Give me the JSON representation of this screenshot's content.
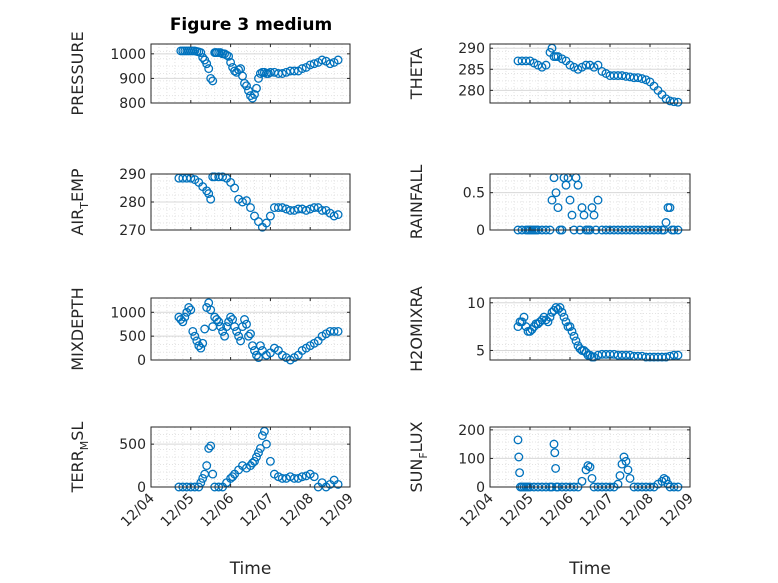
{
  "chart_data": {
    "type": "scatter",
    "figure_title": "Figure 3 medium",
    "marker_color": "#0072BD",
    "x_tick_labels": [
      "12/04",
      "12/05",
      "12/06",
      "12/07",
      "12/08",
      "12/09"
    ],
    "x_label": "Time",
    "panels": [
      {
        "name": "pressure",
        "ylabel": "PRESSURE",
        "ylim": [
          800,
          1040
        ],
        "yticks": [
          800,
          900,
          1000
        ],
        "x": [
          0.75,
          0.8,
          0.85,
          0.9,
          0.95,
          1.0,
          1.05,
          1.1,
          1.15,
          1.2,
          1.25,
          1.3,
          1.35,
          1.4,
          1.45,
          1.5,
          1.55,
          1.6,
          1.62,
          1.65,
          1.7,
          1.75,
          1.8,
          1.85,
          1.9,
          1.95,
          2.0,
          2.05,
          2.1,
          2.15,
          2.2,
          2.25,
          2.3,
          2.35,
          2.4,
          2.45,
          2.5,
          2.55,
          2.6,
          2.65,
          2.7,
          2.75,
          2.8,
          2.85,
          2.9,
          2.95,
          3.0,
          3.1,
          3.2,
          3.3,
          3.4,
          3.5,
          3.6,
          3.7,
          3.8,
          3.9,
          4.0,
          4.1,
          4.2,
          4.3,
          4.4,
          4.5,
          4.6,
          4.7
        ],
        "values": [
          1012,
          1012,
          1012,
          1012,
          1012,
          1012,
          1012,
          1012,
          1010,
          1008,
          1005,
          985,
          975,
          960,
          940,
          900,
          890,
          1005,
          1005,
          1005,
          1005,
          1005,
          1000,
          1000,
          995,
          990,
          965,
          945,
          930,
          925,
          935,
          940,
          910,
          880,
          870,
          850,
          830,
          820,
          835,
          860,
          900,
          920,
          925,
          925,
          920,
          920,
          925,
          925,
          920,
          920,
          925,
          930,
          930,
          930,
          940,
          945,
          955,
          960,
          965,
          975,
          970,
          960,
          965,
          975
        ]
      },
      {
        "name": "theta",
        "ylabel": "THETA",
        "ylim": [
          277,
          291
        ],
        "yticks": [
          280,
          285,
          290
        ],
        "x": [
          0.7,
          0.8,
          0.9,
          1.0,
          1.1,
          1.2,
          1.3,
          1.4,
          1.5,
          1.55,
          1.6,
          1.65,
          1.7,
          1.8,
          1.9,
          2.0,
          2.1,
          2.2,
          2.3,
          2.4,
          2.5,
          2.6,
          2.7,
          2.8,
          2.9,
          3.0,
          3.1,
          3.2,
          3.3,
          3.4,
          3.5,
          3.6,
          3.7,
          3.8,
          3.9,
          4.0,
          4.1,
          4.2,
          4.3,
          4.4,
          4.5,
          4.6,
          4.7
        ],
        "values": [
          287,
          287,
          287,
          287,
          286.5,
          286,
          285.5,
          286,
          289,
          290,
          288,
          288,
          288,
          287.5,
          287,
          286,
          285.5,
          285,
          285.5,
          286,
          286,
          285.5,
          286,
          284.5,
          284,
          283.5,
          283.5,
          283.5,
          283.5,
          283.3,
          283.2,
          283,
          283,
          282.8,
          282.5,
          282,
          281,
          280,
          279,
          278,
          277.5,
          277.3,
          277.2
        ]
      },
      {
        "name": "air_temp",
        "ylabel": "AIR",
        "ylabel_sub": "T",
        "ylabel_rest": "EMP",
        "ylim": [
          270,
          290
        ],
        "yticks": [
          270,
          280,
          290
        ],
        "x": [
          0.7,
          0.8,
          0.9,
          1.0,
          1.1,
          1.2,
          1.3,
          1.4,
          1.45,
          1.5,
          1.55,
          1.6,
          1.7,
          1.8,
          1.9,
          2.0,
          2.1,
          2.2,
          2.3,
          2.4,
          2.5,
          2.6,
          2.7,
          2.8,
          2.9,
          3.0,
          3.1,
          3.2,
          3.3,
          3.4,
          3.5,
          3.6,
          3.7,
          3.8,
          3.9,
          4.0,
          4.1,
          4.2,
          4.3,
          4.4,
          4.5,
          4.6,
          4.7
        ],
        "values": [
          288.5,
          288.5,
          288.5,
          288.5,
          288,
          287,
          285.5,
          284,
          283,
          281,
          289,
          289,
          289,
          289,
          288.5,
          287,
          285,
          281,
          280,
          280.5,
          278,
          275,
          273,
          271,
          272.5,
          275,
          278,
          278,
          278,
          277.5,
          277,
          277,
          277.5,
          277.5,
          277,
          277.5,
          278,
          278,
          277,
          277,
          276,
          275,
          275.5
        ]
      },
      {
        "name": "rainfall",
        "ylabel": "RAINFALL",
        "ylim": [
          0,
          0.75
        ],
        "yticks": [
          0,
          0.5
        ],
        "x": [
          0.7,
          0.8,
          0.9,
          0.95,
          1.0,
          1.05,
          1.1,
          1.15,
          1.2,
          1.3,
          1.4,
          1.5,
          1.55,
          1.6,
          1.65,
          1.7,
          1.75,
          1.8,
          1.85,
          1.9,
          1.95,
          2.0,
          2.05,
          2.1,
          2.15,
          2.2,
          2.25,
          2.3,
          2.35,
          2.4,
          2.45,
          2.5,
          2.55,
          2.6,
          2.65,
          2.7,
          2.8,
          2.9,
          3.0,
          3.1,
          3.2,
          3.3,
          3.4,
          3.5,
          3.6,
          3.7,
          3.8,
          3.9,
          4.0,
          4.1,
          4.2,
          4.3,
          4.35,
          4.4,
          4.45,
          4.5,
          4.55,
          4.6,
          4.7
        ],
        "values": [
          0,
          0,
          0,
          0,
          0,
          0,
          0,
          0,
          0,
          0,
          0,
          0,
          0.4,
          0.7,
          0.5,
          0.3,
          0,
          0,
          0.7,
          0.6,
          0.7,
          0.4,
          0.2,
          0,
          0.7,
          0.6,
          0,
          0.3,
          0.2,
          0,
          0,
          0,
          0.3,
          0.2,
          0,
          0.4,
          0,
          0,
          0,
          0,
          0,
          0,
          0,
          0,
          0,
          0,
          0,
          0,
          0,
          0,
          0,
          0,
          0,
          0.1,
          0.3,
          0.3,
          0,
          0,
          0
        ]
      },
      {
        "name": "mixdepth",
        "ylabel": "MIXDEPTH",
        "ylim": [
          0,
          1300
        ],
        "yticks": [
          0,
          500,
          1000
        ],
        "x": [
          0.7,
          0.75,
          0.8,
          0.85,
          0.9,
          0.95,
          1.0,
          1.05,
          1.1,
          1.15,
          1.2,
          1.25,
          1.3,
          1.35,
          1.4,
          1.45,
          1.5,
          1.55,
          1.6,
          1.65,
          1.7,
          1.75,
          1.8,
          1.85,
          1.9,
          1.95,
          2.0,
          2.05,
          2.1,
          2.15,
          2.2,
          2.25,
          2.3,
          2.35,
          2.4,
          2.45,
          2.5,
          2.55,
          2.6,
          2.65,
          2.7,
          2.75,
          2.8,
          2.9,
          3.0,
          3.1,
          3.2,
          3.3,
          3.4,
          3.5,
          3.6,
          3.7,
          3.8,
          3.9,
          4.0,
          4.1,
          4.2,
          4.3,
          4.4,
          4.5,
          4.6,
          4.7
        ],
        "values": [
          900,
          850,
          800,
          900,
          1000,
          1100,
          1050,
          600,
          500,
          400,
          300,
          250,
          350,
          650,
          1100,
          1200,
          1050,
          700,
          900,
          850,
          800,
          700,
          600,
          500,
          700,
          800,
          900,
          850,
          700,
          600,
          500,
          400,
          700,
          850,
          750,
          500,
          550,
          300,
          200,
          100,
          50,
          300,
          200,
          100,
          150,
          250,
          200,
          100,
          50,
          0,
          50,
          100,
          200,
          250,
          300,
          350,
          400,
          500,
          550,
          600,
          600,
          600
        ]
      },
      {
        "name": "h2omixra",
        "ylabel": "H2OMIXRA",
        "ylim": [
          4,
          10.5
        ],
        "yticks": [
          5,
          10
        ],
        "x": [
          0.7,
          0.75,
          0.8,
          0.85,
          0.9,
          0.95,
          1.0,
          1.05,
          1.1,
          1.15,
          1.2,
          1.25,
          1.3,
          1.35,
          1.4,
          1.45,
          1.5,
          1.55,
          1.6,
          1.65,
          1.7,
          1.75,
          1.8,
          1.85,
          1.9,
          1.95,
          2.0,
          2.05,
          2.1,
          2.15,
          2.2,
          2.25,
          2.3,
          2.35,
          2.4,
          2.45,
          2.5,
          2.55,
          2.6,
          2.7,
          2.8,
          2.9,
          3.0,
          3.1,
          3.2,
          3.3,
          3.4,
          3.5,
          3.6,
          3.7,
          3.8,
          3.9,
          4.0,
          4.1,
          4.2,
          4.3,
          4.4,
          4.5,
          4.6,
          4.7
        ],
        "values": [
          7.5,
          8,
          8,
          8.5,
          7.5,
          7,
          7,
          7.2,
          7.5,
          7.8,
          7.8,
          8,
          8.2,
          8.5,
          8.2,
          8,
          8.5,
          9,
          9.2,
          9.5,
          9.3,
          9.5,
          9,
          8.5,
          8,
          7.5,
          7.5,
          7,
          6.5,
          6,
          5.5,
          5.2,
          5,
          5,
          4.8,
          4.5,
          4.5,
          4.3,
          4.3,
          4.5,
          4.6,
          4.6,
          4.6,
          4.6,
          4.5,
          4.5,
          4.5,
          4.5,
          4.4,
          4.4,
          4.4,
          4.3,
          4.3,
          4.3,
          4.3,
          4.3,
          4.3,
          4.4,
          4.5,
          4.5
        ]
      },
      {
        "name": "terr_msl",
        "ylabel": "TERR",
        "ylabel_sub": "M",
        "ylabel_rest": "SL",
        "ylim": [
          0,
          700
        ],
        "yticks": [
          0,
          500
        ],
        "x": [
          0.7,
          0.8,
          0.9,
          1.0,
          1.1,
          1.2,
          1.25,
          1.3,
          1.35,
          1.4,
          1.45,
          1.5,
          1.55,
          1.6,
          1.7,
          1.8,
          1.9,
          2.0,
          2.05,
          2.1,
          2.2,
          2.3,
          2.4,
          2.5,
          2.55,
          2.6,
          2.65,
          2.7,
          2.75,
          2.8,
          2.85,
          2.9,
          3.0,
          3.1,
          3.2,
          3.3,
          3.4,
          3.5,
          3.6,
          3.7,
          3.8,
          3.9,
          4.0,
          4.1,
          4.2,
          4.3,
          4.4,
          4.5,
          4.6,
          4.7
        ],
        "values": [
          0,
          0,
          0,
          0,
          0,
          0,
          50,
          100,
          150,
          250,
          450,
          480,
          150,
          0,
          0,
          0,
          50,
          100,
          120,
          150,
          200,
          250,
          220,
          250,
          280,
          300,
          350,
          400,
          450,
          600,
          650,
          500,
          300,
          150,
          120,
          100,
          100,
          120,
          100,
          100,
          120,
          130,
          150,
          120,
          0,
          50,
          0,
          30,
          80,
          30
        ]
      },
      {
        "name": "sun_flux",
        "ylabel": "SUN",
        "ylabel_sub": "F",
        "ylabel_rest": "LUX",
        "ylim": [
          0,
          210
        ],
        "yticks": [
          0,
          100,
          200
        ],
        "x": [
          0.7,
          0.72,
          0.74,
          0.76,
          0.8,
          0.85,
          0.9,
          0.95,
          1.0,
          1.1,
          1.2,
          1.3,
          1.4,
          1.5,
          1.55,
          1.6,
          1.62,
          1.64,
          1.66,
          1.7,
          1.8,
          1.9,
          2.0,
          2.1,
          2.2,
          2.3,
          2.4,
          2.45,
          2.5,
          2.55,
          2.6,
          2.7,
          2.8,
          2.9,
          3.0,
          3.1,
          3.2,
          3.25,
          3.3,
          3.35,
          3.4,
          3.45,
          3.5,
          3.6,
          3.7,
          3.8,
          3.9,
          4.0,
          4.1,
          4.2,
          4.3,
          4.35,
          4.4,
          4.45,
          4.5,
          4.6,
          4.7
        ],
        "values": [
          165,
          105,
          50,
          0,
          0,
          0,
          0,
          0,
          0,
          0,
          0,
          0,
          0,
          0,
          0,
          150,
          120,
          65,
          0,
          0,
          0,
          0,
          0,
          0,
          0,
          20,
          60,
          75,
          70,
          30,
          0,
          0,
          0,
          0,
          0,
          0,
          10,
          40,
          80,
          105,
          90,
          60,
          30,
          0,
          0,
          0,
          0,
          0,
          0,
          10,
          20,
          30,
          25,
          10,
          0,
          0,
          0
        ]
      }
    ]
  }
}
